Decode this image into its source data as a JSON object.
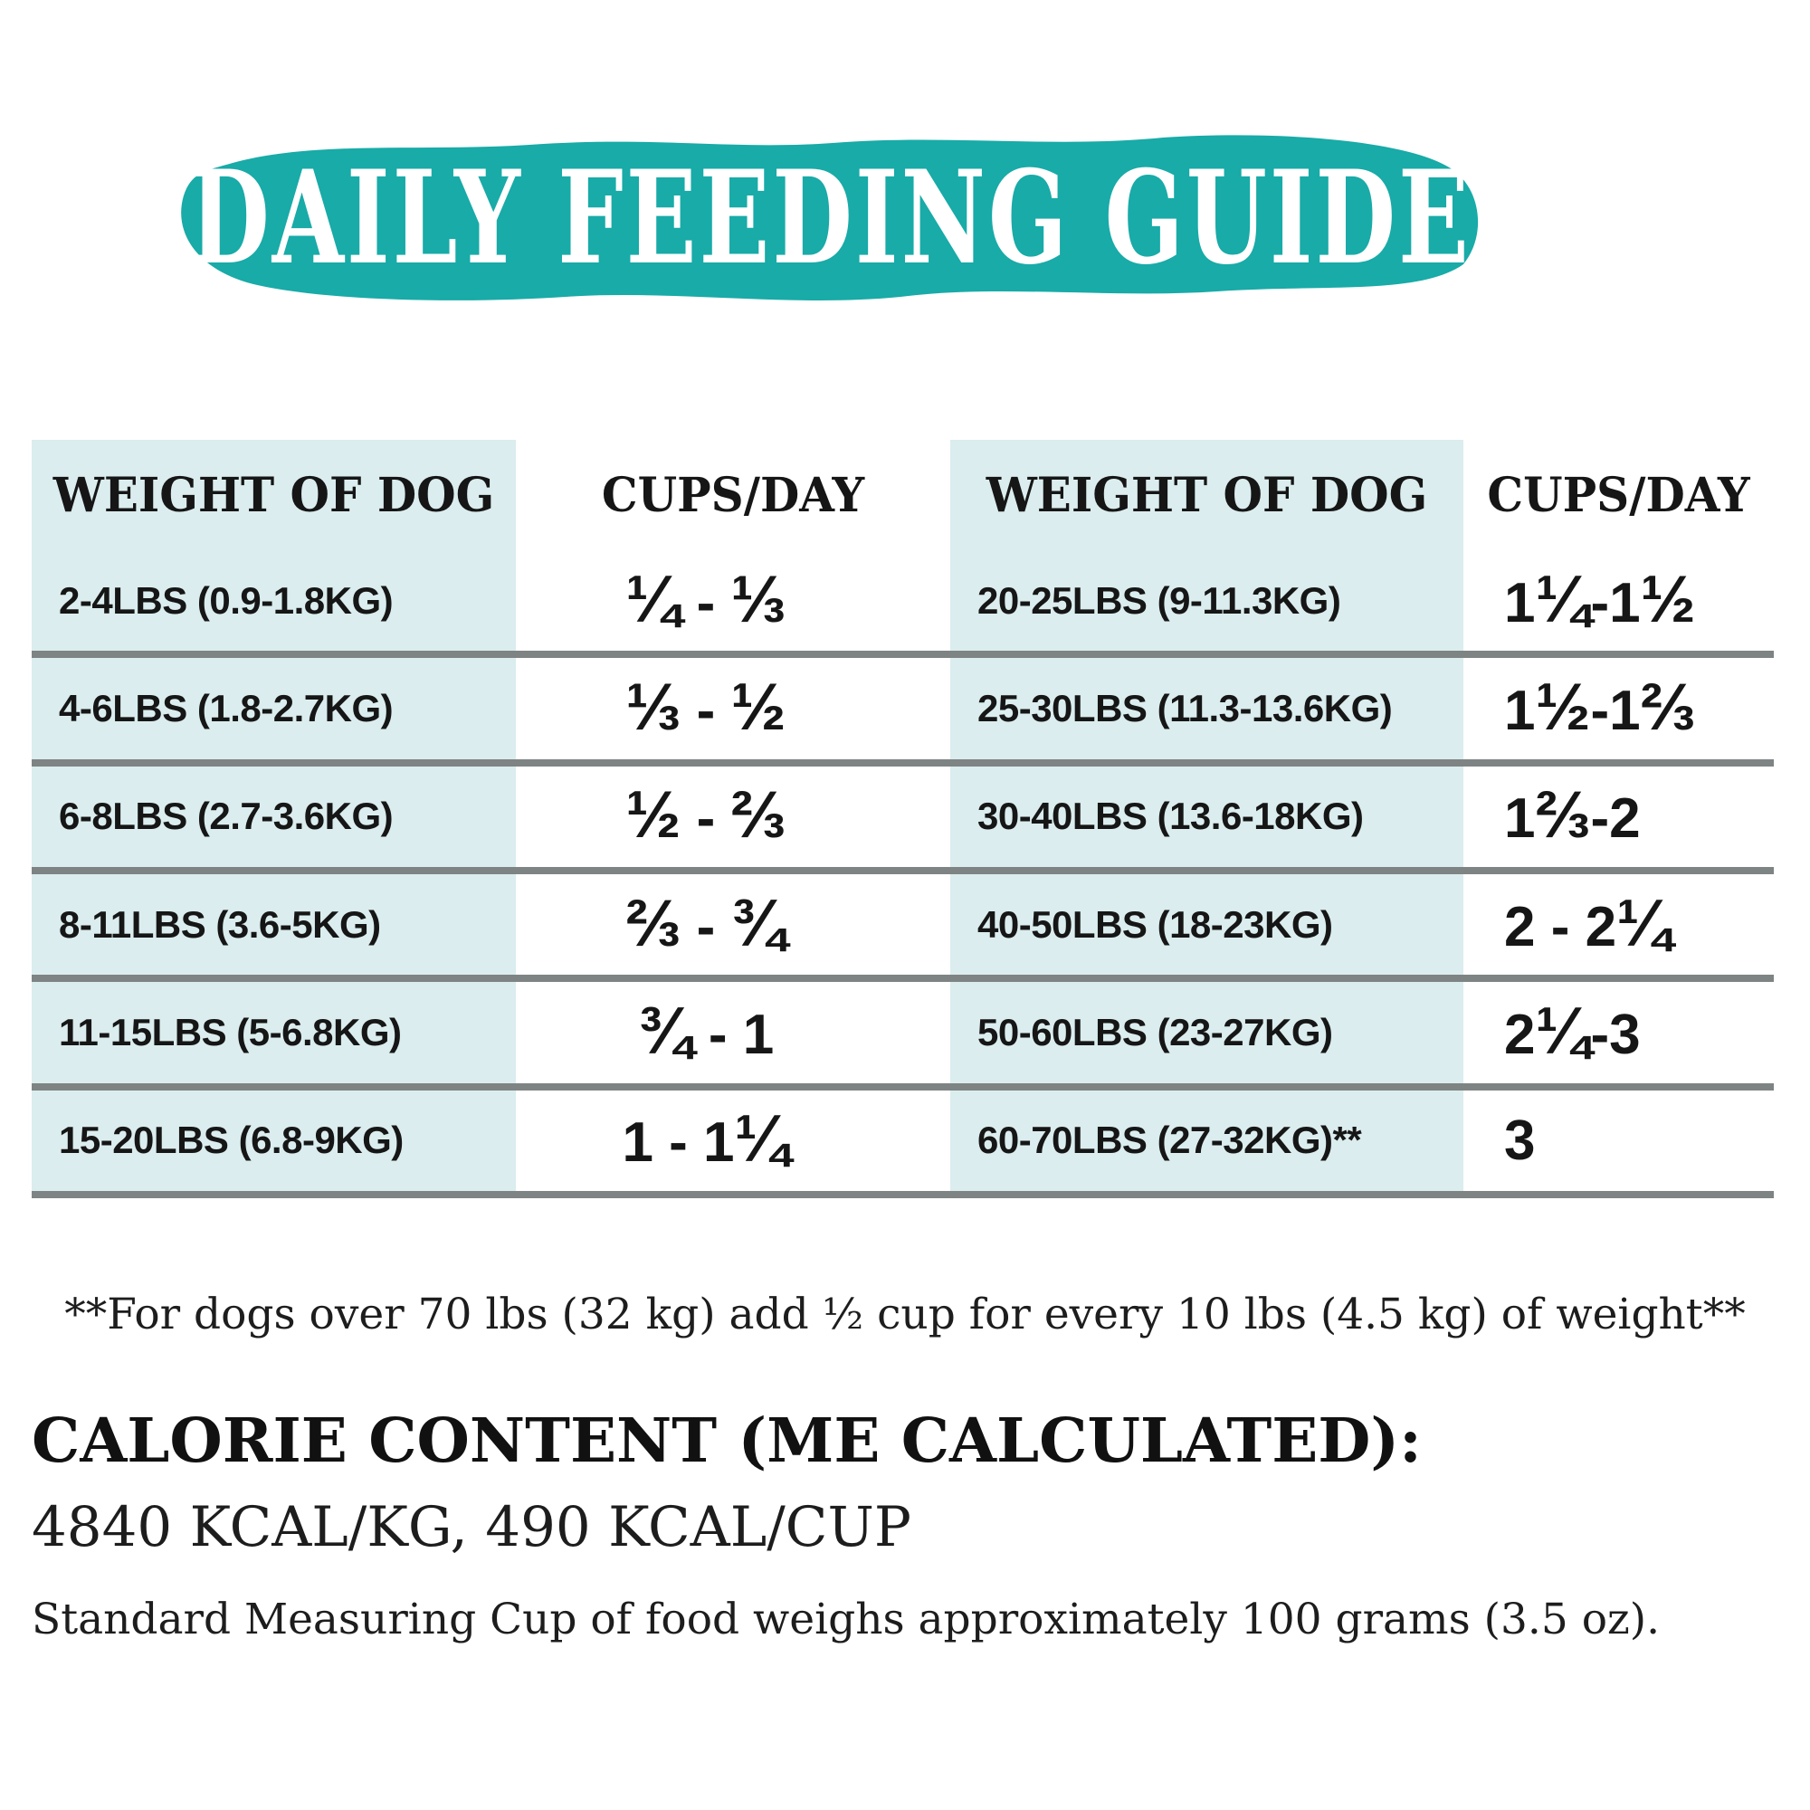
{
  "banner": {
    "title": "DAILY FEEDING GUIDE",
    "background_color": "#18ABA8",
    "text_color": "#ffffff"
  },
  "table": {
    "highlight_color": "#DBEDEE",
    "divider_color": "#7E8483",
    "left": {
      "weight_header": "WEIGHT OF DOG",
      "cups_header": "CUPS/DAY",
      "rows": [
        {
          "weight": "2-4LBS (0.9-1.8KG)",
          "cups": "¼ - ⅓"
        },
        {
          "weight": "4-6LBS (1.8-2.7KG)",
          "cups": "⅓ - ½"
        },
        {
          "weight": "6-8LBS (2.7-3.6KG)",
          "cups": "½ - ⅔"
        },
        {
          "weight": "8-11LBS (3.6-5KG)",
          "cups": "⅔ - ¾"
        },
        {
          "weight": "11-15LBS (5-6.8KG)",
          "cups": "¾ - 1"
        },
        {
          "weight": "15-20LBS (6.8-9KG)",
          "cups": "1 - 1¼"
        }
      ]
    },
    "right": {
      "weight_header": "WEIGHT OF DOG",
      "cups_header": "CUPS/DAY",
      "rows": [
        {
          "weight": "20-25LBS (9-11.3KG)",
          "cups": "1¼-1½"
        },
        {
          "weight": "25-30LBS (11.3-13.6KG)",
          "cups": "1½-1⅔"
        },
        {
          "weight": "30-40LBS (13.6-18KG)",
          "cups": "1⅔-2"
        },
        {
          "weight": "40-50LBS (18-23KG)",
          "cups": "2 - 2¼"
        },
        {
          "weight": "50-60LBS (23-27KG)",
          "cups": "2¼-3"
        },
        {
          "weight": "60-70LBS (27-32KG)**",
          "cups": "3"
        }
      ]
    }
  },
  "footnote": "**For dogs over 70 lbs (32 kg) add ½ cup for every 10 lbs (4.5 kg) of weight**",
  "calorie": {
    "heading": "CALORIE CONTENT (ME CALCULATED):",
    "values": "4840 KCAL/KG, 490 KCAL/CUP",
    "note": "Standard Measuring Cup of food weighs approximately 100 grams (3.5 oz)."
  }
}
